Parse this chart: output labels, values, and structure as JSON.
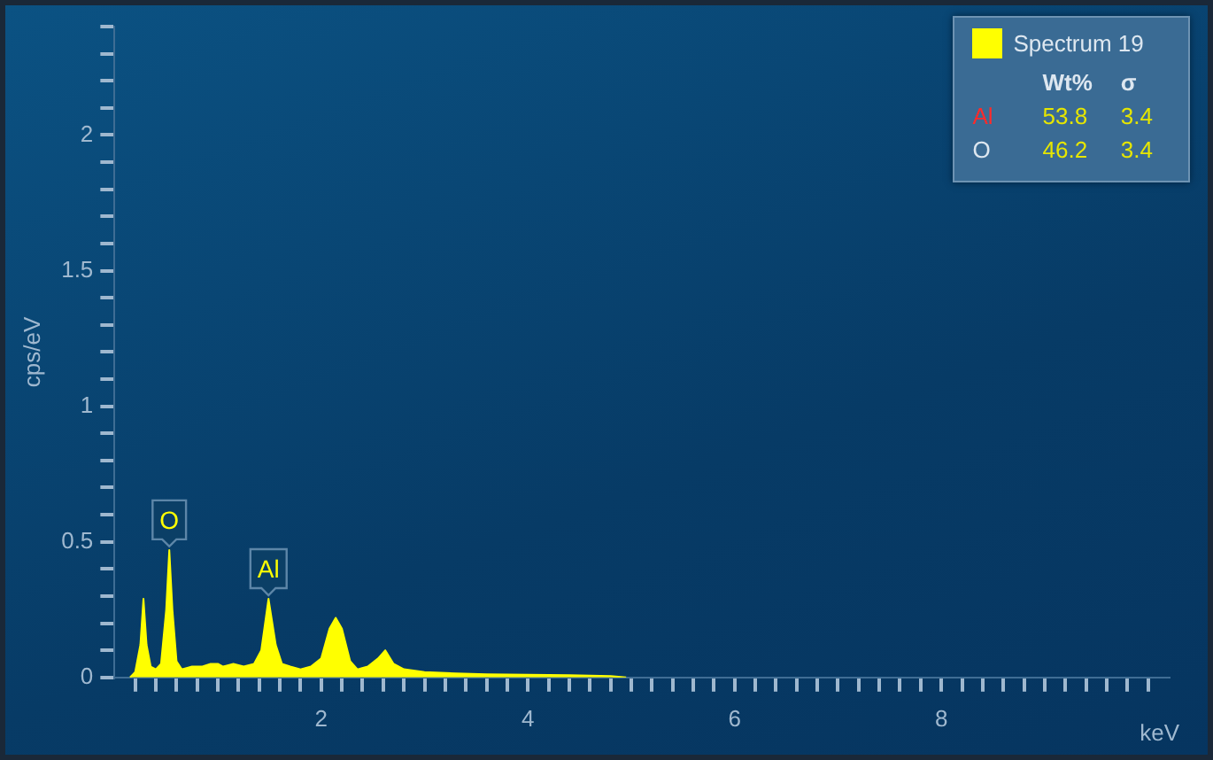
{
  "chart_data": {
    "type": "area",
    "xlabel": "keV",
    "ylabel": "cps/eV",
    "x": [
      0.15,
      0.2,
      0.25,
      0.28,
      0.31,
      0.35,
      0.4,
      0.45,
      0.5,
      0.53,
      0.56,
      0.6,
      0.65,
      0.75,
      0.85,
      0.93,
      1.0,
      1.05,
      1.15,
      1.25,
      1.35,
      1.42,
      1.49,
      1.56,
      1.62,
      1.7,
      1.8,
      1.9,
      2.0,
      2.08,
      2.14,
      2.2,
      2.28,
      2.35,
      2.45,
      2.55,
      2.62,
      2.7,
      2.8,
      3.0,
      3.3,
      3.6,
      4.0,
      4.4,
      4.8,
      4.95
    ],
    "series": [
      {
        "name": "Spectrum 19",
        "color": "#ffff00",
        "values": [
          0,
          0.02,
          0.12,
          0.29,
          0.12,
          0.04,
          0.03,
          0.05,
          0.25,
          0.47,
          0.25,
          0.06,
          0.03,
          0.04,
          0.04,
          0.05,
          0.05,
          0.04,
          0.05,
          0.04,
          0.05,
          0.1,
          0.29,
          0.12,
          0.05,
          0.04,
          0.03,
          0.04,
          0.07,
          0.18,
          0.22,
          0.18,
          0.06,
          0.03,
          0.04,
          0.07,
          0.1,
          0.05,
          0.03,
          0.02,
          0.015,
          0.012,
          0.01,
          0.008,
          0.005,
          0
        ]
      }
    ],
    "xlim": [
      0,
      10.2
    ],
    "xticks": [
      {
        "value": 0.2,
        "label": null
      },
      {
        "value": 0.4,
        "label": null
      },
      {
        "value": 0.6,
        "label": null
      },
      {
        "value": 0.8,
        "label": null
      },
      {
        "value": 1,
        "label": null
      },
      {
        "value": 1.2,
        "label": null
      },
      {
        "value": 1.4,
        "label": null
      },
      {
        "value": 1.6,
        "label": null
      },
      {
        "value": 1.8,
        "label": null
      },
      2,
      {
        "value": 2.2,
        "label": null
      },
      {
        "value": 2.4,
        "label": null
      },
      {
        "value": 2.6,
        "label": null
      },
      {
        "value": 2.8,
        "label": null
      },
      {
        "value": 3,
        "label": null
      },
      {
        "value": 3.2,
        "label": null
      },
      {
        "value": 3.4,
        "label": null
      },
      {
        "value": 3.6,
        "label": null
      },
      {
        "value": 3.8,
        "label": null
      },
      4,
      {
        "value": 4.2,
        "label": null
      },
      {
        "value": 4.4,
        "label": null
      },
      {
        "value": 4.6,
        "label": null
      },
      {
        "value": 4.8,
        "label": null
      },
      {
        "value": 5,
        "label": null
      },
      {
        "value": 5.2,
        "label": null
      },
      {
        "value": 5.4,
        "label": null
      },
      {
        "value": 5.6,
        "label": null
      },
      {
        "value": 5.8,
        "label": null
      },
      6,
      {
        "value": 6.2,
        "label": null
      },
      {
        "value": 6.4,
        "label": null
      },
      {
        "value": 6.6,
        "label": null
      },
      {
        "value": 6.8,
        "label": null
      },
      {
        "value": 7,
        "label": null
      },
      {
        "value": 7.2,
        "label": null
      },
      {
        "value": 7.4,
        "label": null
      },
      {
        "value": 7.6,
        "label": null
      },
      {
        "value": 7.8,
        "label": null
      },
      8,
      {
        "value": 8.2,
        "label": null
      },
      {
        "value": 8.4,
        "label": null
      },
      {
        "value": 8.6,
        "label": null
      },
      {
        "value": 8.8,
        "label": null
      },
      {
        "value": 9,
        "label": null
      },
      {
        "value": 9.2,
        "label": null
      },
      {
        "value": 9.4,
        "label": null
      },
      {
        "value": 9.6,
        "label": null
      },
      {
        "value": 9.8,
        "label": null
      },
      {
        "value": 10,
        "label": null
      }
    ],
    "ylim": [
      0,
      2.4
    ],
    "yticks": [
      0,
      {
        "value": 0.1,
        "label": null
      },
      {
        "value": 0.2,
        "label": null
      },
      {
        "value": 0.3,
        "label": null
      },
      {
        "value": 0.4,
        "label": null
      },
      0.5,
      {
        "value": 0.6,
        "label": null
      },
      {
        "value": 0.7,
        "label": null
      },
      {
        "value": 0.8,
        "label": null
      },
      {
        "value": 0.9,
        "label": null
      },
      1,
      {
        "value": 1.1,
        "label": null
      },
      {
        "value": 1.2,
        "label": null
      },
      {
        "value": 1.3,
        "label": null
      },
      {
        "value": 1.4,
        "label": null
      },
      1.5,
      {
        "value": 1.6,
        "label": null
      },
      {
        "value": 1.7,
        "label": null
      },
      {
        "value": 1.8,
        "label": null
      },
      {
        "value": 1.9,
        "label": null
      },
      2,
      {
        "value": 2.1,
        "label": null
      },
      {
        "value": 2.2,
        "label": null
      },
      {
        "value": 2.3,
        "label": null
      },
      {
        "value": 2.4,
        "label": null
      }
    ],
    "grid": false,
    "legend": "top right",
    "annotations": [
      {
        "text": "O",
        "x": 0.53,
        "y": 0.47
      },
      {
        "text": "Al",
        "x": 1.49,
        "y": 0.29
      },
      "Wt%",
      "σ",
      "Al",
      "53.8",
      "3.4",
      "O",
      "46.2",
      "3.4"
    ]
  }
}
